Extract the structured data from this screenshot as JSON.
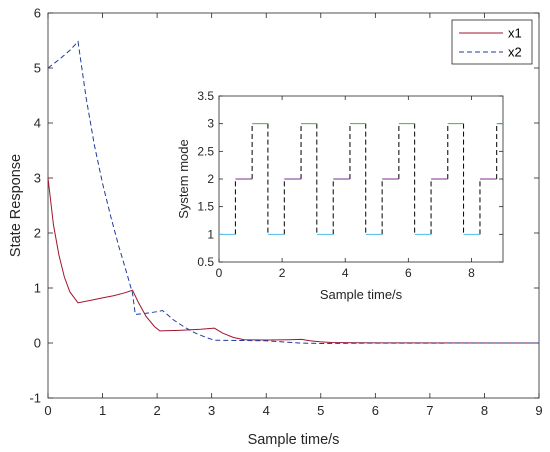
{
  "colors": {
    "x1": "#a2142f",
    "x2": "#1f3b9e",
    "mode1": "#4dbeee",
    "mode2": "#7e2f8e",
    "mode3": "#3cb44b",
    "transition": "#000000",
    "axis": "#262626"
  },
  "chart_data": [
    {
      "type": "line",
      "title": "",
      "xlabel": "Sample time/s",
      "ylabel": "State Response",
      "xlim": [
        0,
        9
      ],
      "ylim": [
        -1,
        6
      ],
      "xticks": [
        "0",
        "1",
        "2",
        "3",
        "4",
        "5",
        "6",
        "7",
        "8",
        "9"
      ],
      "yticks": [
        "-1",
        "0",
        "1",
        "2",
        "3",
        "4",
        "5",
        "6"
      ],
      "grid": false,
      "legend_position": "top-right",
      "series": [
        {
          "name": "x1",
          "style": "solid",
          "points": [
            [
              0,
              3.0
            ],
            [
              0.1,
              2.15
            ],
            [
              0.2,
              1.6
            ],
            [
              0.3,
              1.2
            ],
            [
              0.4,
              0.93
            ],
            [
              0.55,
              0.73
            ],
            [
              0.8,
              0.78
            ],
            [
              1.0,
              0.82
            ],
            [
              1.2,
              0.86
            ],
            [
              1.4,
              0.91
            ],
            [
              1.55,
              0.96
            ],
            [
              1.65,
              0.75
            ],
            [
              1.8,
              0.48
            ],
            [
              1.95,
              0.3
            ],
            [
              2.05,
              0.22
            ],
            [
              2.4,
              0.23
            ],
            [
              2.8,
              0.25
            ],
            [
              3.05,
              0.27
            ],
            [
              3.2,
              0.18
            ],
            [
              3.4,
              0.1
            ],
            [
              3.6,
              0.06
            ],
            [
              4.0,
              0.055
            ],
            [
              4.4,
              0.06
            ],
            [
              4.65,
              0.065
            ],
            [
              4.8,
              0.04
            ],
            [
              5.0,
              0.02
            ],
            [
              5.2,
              0.01
            ],
            [
              5.6,
              0.005
            ],
            [
              6.5,
              0.002
            ],
            [
              9.0,
              0.0
            ]
          ]
        },
        {
          "name": "x2",
          "style": "dashed",
          "points": [
            [
              0,
              5.0
            ],
            [
              0.2,
              5.15
            ],
            [
              0.4,
              5.32
            ],
            [
              0.55,
              5.48
            ],
            [
              0.7,
              4.45
            ],
            [
              0.85,
              3.6
            ],
            [
              1.0,
              2.9
            ],
            [
              1.15,
              2.3
            ],
            [
              1.3,
              1.75
            ],
            [
              1.45,
              1.25
            ],
            [
              1.55,
              0.9
            ],
            [
              1.6,
              0.52
            ],
            [
              1.8,
              0.54
            ],
            [
              2.0,
              0.57
            ],
            [
              2.1,
              0.59
            ],
            [
              2.3,
              0.42
            ],
            [
              2.5,
              0.29
            ],
            [
              2.7,
              0.18
            ],
            [
              2.9,
              0.1
            ],
            [
              3.05,
              0.05
            ],
            [
              3.6,
              0.045
            ],
            [
              4.0,
              0.04
            ],
            [
              4.3,
              0.02
            ],
            [
              4.6,
              0.0
            ],
            [
              5.0,
              -0.01
            ],
            [
              5.5,
              -0.005
            ],
            [
              6.0,
              -0.002
            ],
            [
              9.0,
              0.0
            ]
          ]
        }
      ]
    },
    {
      "type": "line",
      "title": "",
      "xlabel": "Sample time/s",
      "ylabel": "System mode",
      "xlim": [
        0,
        9
      ],
      "ylim": [
        0.5,
        3.5
      ],
      "xticks": [
        "0",
        "2",
        "4",
        "6",
        "8"
      ],
      "yticks": [
        "0.5",
        "1",
        "1.5",
        "2",
        "2.5",
        "3",
        "3.5"
      ],
      "grid": false,
      "cycle_period": 1.55,
      "segments": [
        {
          "mode": 1,
          "x": [
            0.0,
            0.52
          ]
        },
        {
          "mode": 2,
          "x": [
            0.52,
            1.05
          ]
        },
        {
          "mode": 3,
          "x": [
            1.05,
            1.55
          ]
        },
        {
          "mode": 1,
          "x": [
            1.55,
            2.07
          ]
        },
        {
          "mode": 2,
          "x": [
            2.07,
            2.6
          ]
        },
        {
          "mode": 3,
          "x": [
            2.6,
            3.1
          ]
        },
        {
          "mode": 1,
          "x": [
            3.1,
            3.62
          ]
        },
        {
          "mode": 2,
          "x": [
            3.62,
            4.15
          ]
        },
        {
          "mode": 3,
          "x": [
            4.15,
            4.65
          ]
        },
        {
          "mode": 1,
          "x": [
            4.65,
            5.17
          ]
        },
        {
          "mode": 2,
          "x": [
            5.17,
            5.7
          ]
        },
        {
          "mode": 3,
          "x": [
            5.7,
            6.2
          ]
        },
        {
          "mode": 1,
          "x": [
            6.2,
            6.72
          ]
        },
        {
          "mode": 2,
          "x": [
            6.72,
            7.25
          ]
        },
        {
          "mode": 3,
          "x": [
            7.25,
            7.75
          ]
        },
        {
          "mode": 1,
          "x": [
            7.75,
            8.27
          ]
        },
        {
          "mode": 2,
          "x": [
            8.27,
            8.8
          ]
        },
        {
          "mode": 3,
          "x": [
            8.8,
            9.0
          ]
        }
      ]
    }
  ]
}
